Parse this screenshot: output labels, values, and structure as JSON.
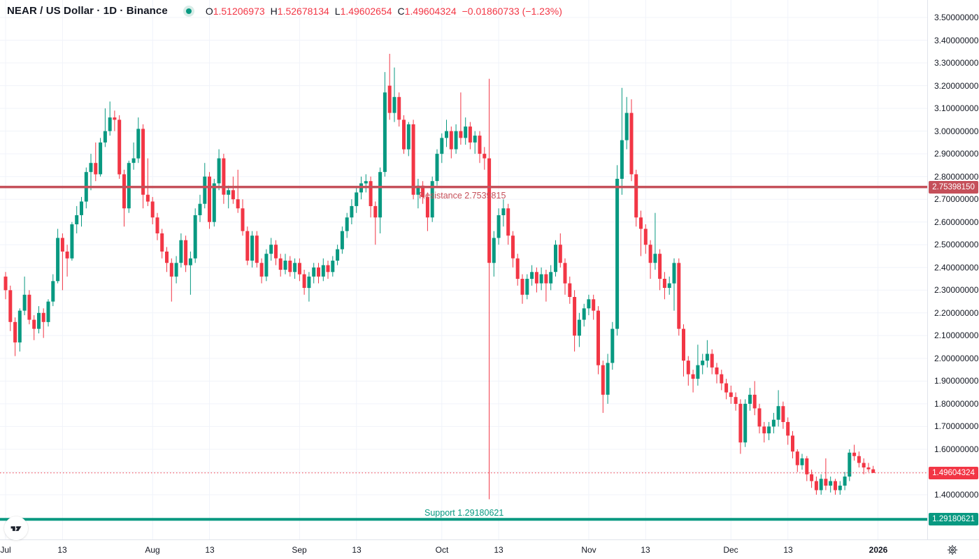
{
  "header": {
    "symbol_title": "NEAR / US Dollar · 1D · Binance",
    "ohlc": {
      "o_label": "O",
      "o": "1.51206973",
      "h_label": "H",
      "h": "1.52678134",
      "l_label": "L",
      "l": "1.49602654",
      "c_label": "C",
      "c": "1.49604324",
      "change": "−0.01860733 (−1.23%)"
    },
    "status_icon": "market-status-dot"
  },
  "colors": {
    "up": "#089981",
    "down": "#f23645",
    "grid": "#f0f3fa",
    "axis_border": "#e0e3eb",
    "axis_text": "#131722",
    "resistance": "#c5505a",
    "support": "#089981",
    "last_price": "#f23645"
  },
  "levels": {
    "resistance": {
      "label": "Resistance 2.7539815",
      "value": 2.7539815,
      "tag": "2.75398150"
    },
    "support": {
      "label": "Support 1.29180621",
      "value": 1.2918062,
      "tag": "1.29180621"
    },
    "last_price": {
      "value": 1.49604324,
      "tag": "1.49604324"
    }
  },
  "price_axis": {
    "ticks": [
      {
        "label": "3.50000000",
        "value": 3.5
      },
      {
        "label": "3.40000000",
        "value": 3.4
      },
      {
        "label": "3.30000000",
        "value": 3.3
      },
      {
        "label": "3.20000000",
        "value": 3.2
      },
      {
        "label": "3.10000000",
        "value": 3.1
      },
      {
        "label": "3.00000000",
        "value": 3.0
      },
      {
        "label": "2.90000000",
        "value": 2.9
      },
      {
        "label": "2.80000000",
        "value": 2.8
      },
      {
        "label": "2.70000000",
        "value": 2.7
      },
      {
        "label": "2.60000000",
        "value": 2.6
      },
      {
        "label": "2.50000000",
        "value": 2.5
      },
      {
        "label": "2.40000000",
        "value": 2.4
      },
      {
        "label": "2.30000000",
        "value": 2.3
      },
      {
        "label": "2.20000000",
        "value": 2.2
      },
      {
        "label": "2.10000000",
        "value": 2.1
      },
      {
        "label": "2.00000000",
        "value": 2.0
      },
      {
        "label": "1.90000000",
        "value": 1.9
      },
      {
        "label": "1.80000000",
        "value": 1.8
      },
      {
        "label": "1.70000000",
        "value": 1.7
      },
      {
        "label": "1.60000000",
        "value": 1.6
      },
      {
        "label": "1.40000000",
        "value": 1.4
      }
    ]
  },
  "time_axis": {
    "ticks": [
      {
        "label": "Jul",
        "day": 0
      },
      {
        "label": "13",
        "day": 12
      },
      {
        "label": "Aug",
        "day": 31
      },
      {
        "label": "13",
        "day": 43
      },
      {
        "label": "Sep",
        "day": 62
      },
      {
        "label": "13",
        "day": 74
      },
      {
        "label": "Oct",
        "day": 92
      },
      {
        "label": "13",
        "day": 104
      },
      {
        "label": "Nov",
        "day": 123
      },
      {
        "label": "13",
        "day": 135
      },
      {
        "label": "Dec",
        "day": 153
      },
      {
        "label": "13",
        "day": 165
      },
      {
        "label": "2026",
        "day": 184,
        "bold": true
      }
    ]
  },
  "footer": {
    "settings_icon": "gear",
    "logo": "TradingView"
  },
  "chart_data": {
    "type": "candlestick",
    "symbol": "NEAR/USD",
    "interval": "1D",
    "exchange": "Binance",
    "x_axis": "Jul – Dec (daily), first candle is day −1 relative to Jul 1",
    "first_candle_day_offset": -1,
    "y_range": [
      1.29,
      3.5
    ],
    "grid": true,
    "candles_format": [
      "open",
      "high",
      "low",
      "close"
    ],
    "candles": [
      [
        2.36,
        2.38,
        2.26,
        2.3
      ],
      [
        2.3,
        2.32,
        2.12,
        2.16
      ],
      [
        2.16,
        2.18,
        2.01,
        2.07
      ],
      [
        2.07,
        2.22,
        2.03,
        2.21
      ],
      [
        2.21,
        2.36,
        2.19,
        2.28
      ],
      [
        2.28,
        2.3,
        2.15,
        2.17
      ],
      [
        2.17,
        2.19,
        2.08,
        2.13
      ],
      [
        2.13,
        2.23,
        2.11,
        2.2
      ],
      [
        2.2,
        2.22,
        2.09,
        2.16
      ],
      [
        2.16,
        2.26,
        2.14,
        2.25
      ],
      [
        2.25,
        2.37,
        2.23,
        2.34
      ],
      [
        2.34,
        2.57,
        2.33,
        2.53
      ],
      [
        2.53,
        2.55,
        2.3,
        2.47
      ],
      [
        2.47,
        2.5,
        2.36,
        2.44
      ],
      [
        2.44,
        2.6,
        2.43,
        2.59
      ],
      [
        2.59,
        2.67,
        2.55,
        2.63
      ],
      [
        2.63,
        2.71,
        2.58,
        2.69
      ],
      [
        2.69,
        2.84,
        2.66,
        2.82
      ],
      [
        2.82,
        2.9,
        2.74,
        2.86
      ],
      [
        2.86,
        2.95,
        2.78,
        2.81
      ],
      [
        2.81,
        2.97,
        2.8,
        2.95
      ],
      [
        2.95,
        3.1,
        2.93,
        3.0
      ],
      [
        3.0,
        3.13,
        2.98,
        3.06
      ],
      [
        3.06,
        3.09,
        3.0,
        3.05
      ],
      [
        3.05,
        3.07,
        2.79,
        2.81
      ],
      [
        2.81,
        2.83,
        2.58,
        2.66
      ],
      [
        2.66,
        2.87,
        2.64,
        2.86
      ],
      [
        2.86,
        2.95,
        2.83,
        2.88
      ],
      [
        2.88,
        3.06,
        2.86,
        3.01
      ],
      [
        3.01,
        3.03,
        2.66,
        2.72
      ],
      [
        2.72,
        2.88,
        2.67,
        2.69
      ],
      [
        2.69,
        2.71,
        2.59,
        2.62
      ],
      [
        2.62,
        2.64,
        2.52,
        2.55
      ],
      [
        2.55,
        2.57,
        2.44,
        2.47
      ],
      [
        2.47,
        2.49,
        2.38,
        2.42
      ],
      [
        2.42,
        2.44,
        2.25,
        2.36
      ],
      [
        2.36,
        2.45,
        2.33,
        2.42
      ],
      [
        2.42,
        2.55,
        2.4,
        2.52
      ],
      [
        2.52,
        2.54,
        2.38,
        2.41
      ],
      [
        2.41,
        2.47,
        2.28,
        2.44
      ],
      [
        2.44,
        2.66,
        2.42,
        2.63
      ],
      [
        2.63,
        2.72,
        2.6,
        2.68
      ],
      [
        2.68,
        2.86,
        2.66,
        2.8
      ],
      [
        2.8,
        2.82,
        2.57,
        2.6
      ],
      [
        2.6,
        2.79,
        2.58,
        2.77
      ],
      [
        2.77,
        2.92,
        2.74,
        2.88
      ],
      [
        2.88,
        2.9,
        2.68,
        2.72
      ],
      [
        2.72,
        2.76,
        2.66,
        2.74
      ],
      [
        2.74,
        2.8,
        2.68,
        2.7
      ],
      [
        2.7,
        2.83,
        2.64,
        2.66
      ],
      [
        2.66,
        2.7,
        2.54,
        2.56
      ],
      [
        2.56,
        2.58,
        2.41,
        2.43
      ],
      [
        2.43,
        2.56,
        2.4,
        2.54
      ],
      [
        2.54,
        2.56,
        2.4,
        2.42
      ],
      [
        2.42,
        2.44,
        2.33,
        2.36
      ],
      [
        2.36,
        2.48,
        2.34,
        2.46
      ],
      [
        2.46,
        2.53,
        2.43,
        2.5
      ],
      [
        2.5,
        2.52,
        2.41,
        2.44
      ],
      [
        2.44,
        2.46,
        2.36,
        2.39
      ],
      [
        2.39,
        2.46,
        2.37,
        2.43
      ],
      [
        2.43,
        2.45,
        2.36,
        2.38
      ],
      [
        2.38,
        2.44,
        2.35,
        2.42
      ],
      [
        2.42,
        2.44,
        2.34,
        2.37
      ],
      [
        2.37,
        2.39,
        2.28,
        2.31
      ],
      [
        2.31,
        2.38,
        2.25,
        2.36
      ],
      [
        2.36,
        2.42,
        2.33,
        2.4
      ],
      [
        2.4,
        2.42,
        2.33,
        2.36
      ],
      [
        2.36,
        2.44,
        2.34,
        2.41
      ],
      [
        2.41,
        2.43,
        2.35,
        2.38
      ],
      [
        2.38,
        2.45,
        2.36,
        2.43
      ],
      [
        2.43,
        2.5,
        2.41,
        2.48
      ],
      [
        2.48,
        2.58,
        2.46,
        2.56
      ],
      [
        2.56,
        2.64,
        2.53,
        2.62
      ],
      [
        2.62,
        2.7,
        2.59,
        2.67
      ],
      [
        2.67,
        2.75,
        2.64,
        2.73
      ],
      [
        2.73,
        2.8,
        2.7,
        2.77
      ],
      [
        2.77,
        2.81,
        2.73,
        2.78
      ],
      [
        2.78,
        2.8,
        2.62,
        2.67
      ],
      [
        2.67,
        2.69,
        2.5,
        2.62
      ],
      [
        2.62,
        2.84,
        2.55,
        2.82
      ],
      [
        2.82,
        3.26,
        2.8,
        3.17
      ],
      [
        3.2,
        3.34,
        3.05,
        3.08
      ],
      [
        3.08,
        3.28,
        3.04,
        3.15
      ],
      [
        3.15,
        3.17,
        3.02,
        3.05
      ],
      [
        3.05,
        3.07,
        2.9,
        2.92
      ],
      [
        2.92,
        3.04,
        2.89,
        3.03
      ],
      [
        3.03,
        3.05,
        2.7,
        2.72
      ],
      [
        2.72,
        2.79,
        2.66,
        2.76
      ],
      [
        2.76,
        2.78,
        2.68,
        2.71
      ],
      [
        2.71,
        2.73,
        2.56,
        2.62
      ],
      [
        2.62,
        2.8,
        2.6,
        2.78
      ],
      [
        2.78,
        2.92,
        2.76,
        2.9
      ],
      [
        2.9,
        2.99,
        2.86,
        2.97
      ],
      [
        2.97,
        3.05,
        2.93,
        3.0
      ],
      [
        3.0,
        3.02,
        2.88,
        2.92
      ],
      [
        2.92,
        3.03,
        2.9,
        3.0
      ],
      [
        3.0,
        3.17,
        2.94,
        2.97
      ],
      [
        2.97,
        3.06,
        2.94,
        3.02
      ],
      [
        3.02,
        3.04,
        2.92,
        2.95
      ],
      [
        2.95,
        3.0,
        2.9,
        2.98
      ],
      [
        2.98,
        3.0,
        2.86,
        2.9
      ],
      [
        2.9,
        2.93,
        2.83,
        2.88
      ],
      [
        2.88,
        3.23,
        1.38,
        2.42
      ],
      [
        2.42,
        2.56,
        2.36,
        2.53
      ],
      [
        2.53,
        2.66,
        2.5,
        2.63
      ],
      [
        2.63,
        2.7,
        2.58,
        2.66
      ],
      [
        2.66,
        2.68,
        2.5,
        2.54
      ],
      [
        2.54,
        2.56,
        2.4,
        2.44
      ],
      [
        2.44,
        2.46,
        2.32,
        2.35
      ],
      [
        2.35,
        2.37,
        2.24,
        2.28
      ],
      [
        2.28,
        2.37,
        2.26,
        2.35
      ],
      [
        2.35,
        2.41,
        2.32,
        2.38
      ],
      [
        2.38,
        2.4,
        2.29,
        2.33
      ],
      [
        2.33,
        2.4,
        2.3,
        2.37
      ],
      [
        2.37,
        2.39,
        2.25,
        2.33
      ],
      [
        2.33,
        2.41,
        2.3,
        2.38
      ],
      [
        2.38,
        2.52,
        2.36,
        2.5
      ],
      [
        2.5,
        2.55,
        2.4,
        2.42
      ],
      [
        2.42,
        2.44,
        2.28,
        2.33
      ],
      [
        2.33,
        2.36,
        2.24,
        2.27
      ],
      [
        2.27,
        2.3,
        2.03,
        2.1
      ],
      [
        2.1,
        2.2,
        2.05,
        2.17
      ],
      [
        2.17,
        2.24,
        2.14,
        2.22
      ],
      [
        2.22,
        2.28,
        2.19,
        2.26
      ],
      [
        2.26,
        2.28,
        2.17,
        2.21
      ],
      [
        2.21,
        2.23,
        1.93,
        1.97
      ],
      [
        1.97,
        1.99,
        1.76,
        1.84
      ],
      [
        1.84,
        2.02,
        1.8,
        1.98
      ],
      [
        1.98,
        2.16,
        1.95,
        2.13
      ],
      [
        2.13,
        2.85,
        2.1,
        2.79
      ],
      [
        2.79,
        3.19,
        2.72,
        2.96
      ],
      [
        2.96,
        3.15,
        2.92,
        3.08
      ],
      [
        3.08,
        3.14,
        2.78,
        2.81
      ],
      [
        2.81,
        2.83,
        2.58,
        2.62
      ],
      [
        2.62,
        2.65,
        2.45,
        2.57
      ],
      [
        2.57,
        2.59,
        2.46,
        2.5
      ],
      [
        2.5,
        2.52,
        2.35,
        2.42
      ],
      [
        2.42,
        2.64,
        2.39,
        2.46
      ],
      [
        2.46,
        2.48,
        2.3,
        2.35
      ],
      [
        2.35,
        2.38,
        2.26,
        2.31
      ],
      [
        2.31,
        2.36,
        2.28,
        2.33
      ],
      [
        2.33,
        2.44,
        2.21,
        2.42
      ],
      [
        2.42,
        2.44,
        2.1,
        2.13
      ],
      [
        2.13,
        2.15,
        1.92,
        1.99
      ],
      [
        1.99,
        2.01,
        1.88,
        1.93
      ],
      [
        1.93,
        1.95,
        1.85,
        1.91
      ],
      [
        1.91,
        2.06,
        1.88,
        1.97
      ],
      [
        1.97,
        2.02,
        1.93,
        1.99
      ],
      [
        1.99,
        2.08,
        1.96,
        2.02
      ],
      [
        2.02,
        2.04,
        1.93,
        1.96
      ],
      [
        1.96,
        1.98,
        1.89,
        1.93
      ],
      [
        1.93,
        1.95,
        1.86,
        1.89
      ],
      [
        1.89,
        1.91,
        1.82,
        1.85
      ],
      [
        1.85,
        1.88,
        1.8,
        1.83
      ],
      [
        1.83,
        1.85,
        1.77,
        1.8
      ],
      [
        1.8,
        1.82,
        1.58,
        1.63
      ],
      [
        1.63,
        1.82,
        1.61,
        1.8
      ],
      [
        1.8,
        1.87,
        1.77,
        1.84
      ],
      [
        1.84,
        1.9,
        1.75,
        1.78
      ],
      [
        1.78,
        1.8,
        1.67,
        1.7
      ],
      [
        1.7,
        1.72,
        1.63,
        1.67
      ],
      [
        1.67,
        1.72,
        1.64,
        1.7
      ],
      [
        1.7,
        1.76,
        1.67,
        1.73
      ],
      [
        1.73,
        1.86,
        1.7,
        1.79
      ],
      [
        1.79,
        1.81,
        1.69,
        1.72
      ],
      [
        1.72,
        1.74,
        1.62,
        1.66
      ],
      [
        1.66,
        1.68,
        1.56,
        1.59
      ],
      [
        1.59,
        1.6,
        1.5,
        1.53
      ],
      [
        1.53,
        1.58,
        1.51,
        1.56
      ],
      [
        1.56,
        1.57,
        1.46,
        1.49
      ],
      [
        1.49,
        1.51,
        1.43,
        1.46
      ],
      [
        1.46,
        1.48,
        1.4,
        1.42
      ],
      [
        1.42,
        1.49,
        1.4,
        1.47
      ],
      [
        1.47,
        1.56,
        1.42,
        1.44
      ],
      [
        1.44,
        1.48,
        1.41,
        1.46
      ],
      [
        1.46,
        1.47,
        1.4,
        1.42
      ],
      [
        1.42,
        1.46,
        1.4,
        1.44
      ],
      [
        1.44,
        1.5,
        1.42,
        1.48
      ],
      [
        1.48,
        1.6,
        1.46,
        1.585
      ],
      [
        1.585,
        1.62,
        1.55,
        1.57
      ],
      [
        1.57,
        1.59,
        1.52,
        1.54
      ],
      [
        1.54,
        1.56,
        1.49,
        1.52
      ],
      [
        1.52,
        1.54,
        1.5,
        1.512
      ],
      [
        1.512,
        1.527,
        1.496,
        1.496
      ]
    ]
  }
}
